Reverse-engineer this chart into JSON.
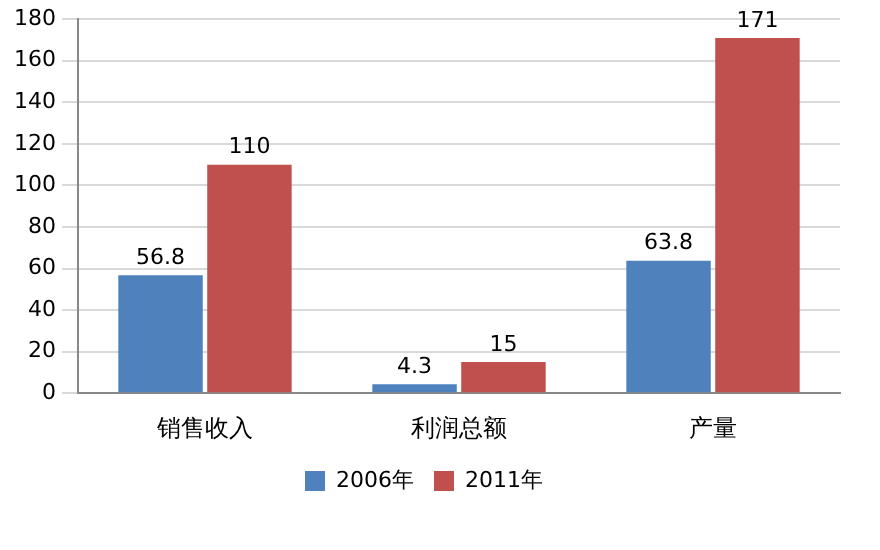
{
  "chart_data": {
    "type": "bar",
    "categories": [
      "销售收入",
      "利润总额",
      "产量"
    ],
    "series": [
      {
        "name": "2006年",
        "color": "#4f81bd",
        "values": [
          56.8,
          4.3,
          63.8
        ]
      },
      {
        "name": "2011年",
        "color": "#c0504d",
        "values": [
          110,
          15,
          171
        ]
      }
    ],
    "ylim": [
      0,
      180
    ],
    "yticks": [
      0,
      20,
      40,
      60,
      80,
      100,
      120,
      140,
      160,
      180
    ],
    "grid": "y",
    "legend": "bottom",
    "data_labels": true
  }
}
